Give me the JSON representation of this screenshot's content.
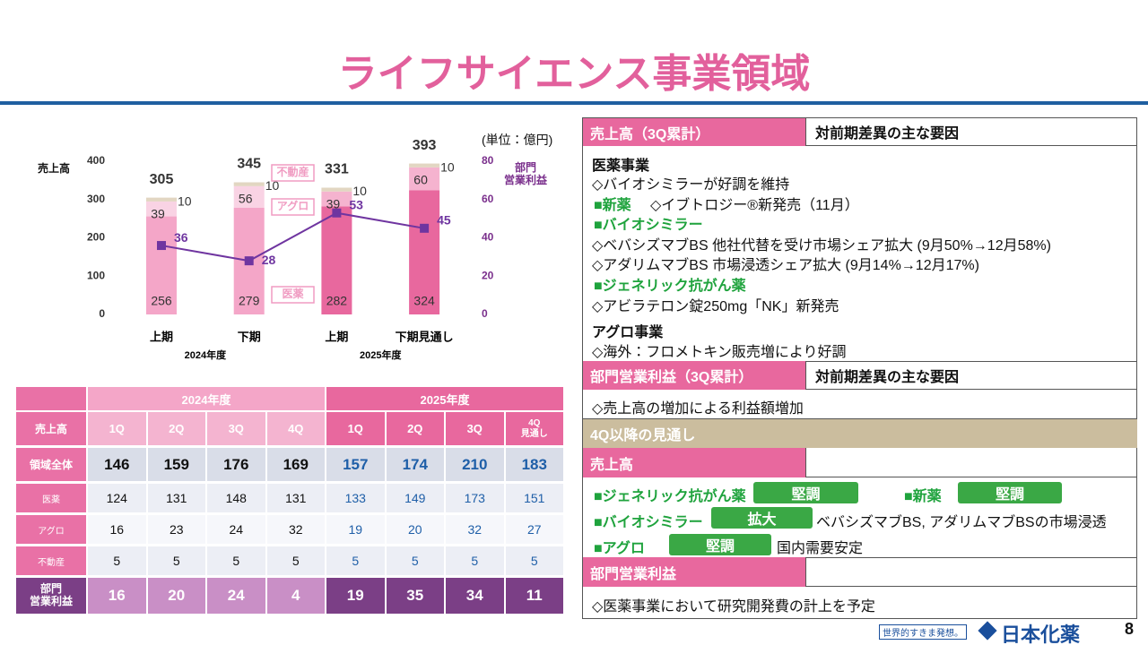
{
  "title": "ライフサイエンス事業領域",
  "chart_data": {
    "type": "bar",
    "stacked": true,
    "unit": "(単位：億円)",
    "ylabel": "売上高",
    "y2label": "部門\n営業利益",
    "categories": [
      "上期",
      "下期",
      "上期",
      "下期見通し"
    ],
    "groups": [
      "2024年度",
      "2025年度"
    ],
    "series": [
      {
        "name": "医薬",
        "colors": [
          "#f4a6c8",
          "#f4a6c8",
          "#e8689e",
          "#e8689e"
        ],
        "values": [
          256,
          279,
          282,
          324
        ]
      },
      {
        "name": "アグロ",
        "colors": [
          "#f9d3e4",
          "#f9d3e4",
          "#f5b3cf",
          "#f5b3cf"
        ],
        "values": [
          39,
          56,
          39,
          60
        ]
      },
      {
        "name": "不動産",
        "colors": [
          "#e2d6c2",
          "#e2d6c2",
          "#e2d6c2",
          "#e2d6c2"
        ],
        "values": [
          10,
          10,
          10,
          10
        ]
      },
      {
        "type": "line",
        "axis": "y2",
        "color": "#6f35a0",
        "values": [
          36,
          28,
          53,
          45
        ]
      }
    ],
    "totals": [
      305,
      345,
      331,
      393
    ],
    "ylim": [
      0,
      400
    ],
    "yticks": [
      0,
      100,
      200,
      300,
      400
    ],
    "y2lim": [
      0,
      80
    ],
    "y2ticks": [
      0,
      20,
      40,
      60,
      80
    ],
    "grid": false
  },
  "table": {
    "years": [
      "2024年度",
      "2025年度"
    ],
    "corner": "売上高",
    "columns": [
      "1Q",
      "2Q",
      "3Q",
      "4Q",
      "1Q",
      "2Q",
      "3Q",
      "4Q\n見通し"
    ],
    "rows": [
      {
        "label": "領域全体",
        "values": [
          146,
          159,
          176,
          169,
          157,
          174,
          210,
          183
        ]
      },
      {
        "label": "医薬",
        "values": [
          124,
          131,
          148,
          131,
          133,
          149,
          173,
          151
        ]
      },
      {
        "label": "アグロ",
        "values": [
          16,
          23,
          24,
          32,
          19,
          20,
          32,
          27
        ]
      },
      {
        "label": "不動産",
        "values": [
          5,
          5,
          5,
          5,
          5,
          5,
          5,
          5
        ]
      },
      {
        "label": "部門\n営業利益",
        "values": [
          16,
          20,
          24,
          4,
          19,
          35,
          34,
          11
        ]
      }
    ]
  },
  "panel": {
    "sales": {
      "label": "売上高（3Q累計）",
      "header": "対前期差異の主な要因",
      "lines": [
        "医薬事業",
        "◇バイオシミラーが好調を維持",
        "■新薬",
        "◇イブトロジー®新発売（11月）",
        "■バイオシミラー",
        "◇ベバシズマブBS 他社代替を受け市場シェア拡大 (9月50%→12月58%)",
        "◇アダリムマブBS 市場浸透シェア拡大 (9月14%→12月17%)",
        "■ジェネリック抗がん薬",
        "◇アビラテロン錠250mg「NK」新発売",
        "アグロ事業",
        "◇海外：フロメトキン販売増により好調"
      ]
    },
    "profit": {
      "label": "部門営業利益（3Q累計）",
      "header": "対前期差異の主な要因",
      "lines": [
        "◇売上高の増加による利益額増加"
      ]
    },
    "outlook": {
      "title": "4Q以降の見通し",
      "sales_label": "売上高",
      "sales_items": [
        {
          "name": "■ジェネリック抗がん薬",
          "status": "堅調"
        },
        {
          "name": "■新薬",
          "status": "堅調"
        },
        {
          "name": "■バイオシミラー",
          "status": "拡大",
          "note": "ベバシズマブBS, アダリムマブBSの市場浸透"
        },
        {
          "name": "■アグロ",
          "status": "堅調",
          "note": "国内需要安定"
        }
      ],
      "profit_label": "部門営業利益",
      "profit_lines": [
        "◇医薬事業において研究開発費の計上を予定"
      ]
    }
  },
  "footer": {
    "tagline": "世界的すきま発想。",
    "company": "日本化薬",
    "page": 8
  }
}
